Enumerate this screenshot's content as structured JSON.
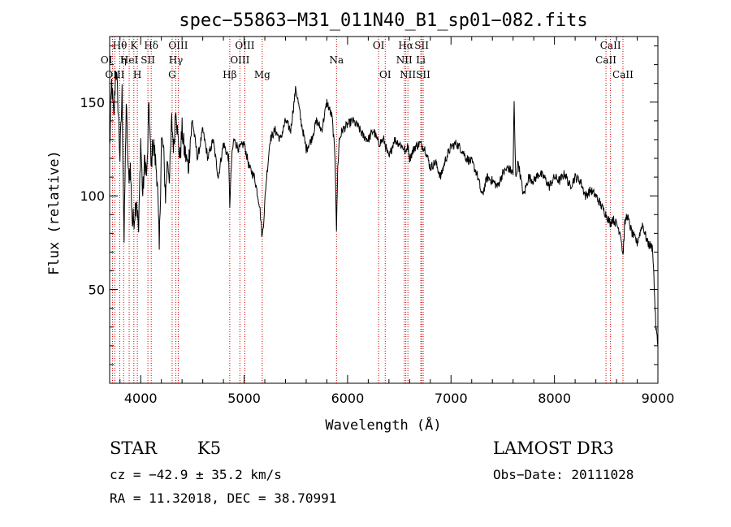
{
  "chart_data": {
    "type": "line",
    "title": "spec−55863−M31_011N40_B1_sp01−082.fits",
    "xlabel": "Wavelength (Å)",
    "ylabel": "Flux (relative)",
    "xlim": [
      3700,
      9000
    ],
    "ylim": [
      0,
      185
    ],
    "x_ticks": [
      4000,
      5000,
      6000,
      7000,
      8000,
      9000
    ],
    "y_ticks": [
      50,
      100,
      150
    ],
    "x_tick_labels": [
      "4000",
      "5000",
      "6000",
      "7000",
      "8000",
      "9000"
    ],
    "y_tick_labels": [
      "50",
      "100",
      "150"
    ],
    "series": [
      {
        "name": "flux",
        "x": [
          3700,
          3720,
          3740,
          3760,
          3780,
          3800,
          3820,
          3840,
          3860,
          3880,
          3900,
          3920,
          3940,
          3960,
          3980,
          4000,
          4020,
          4040,
          4060,
          4080,
          4100,
          4120,
          4140,
          4160,
          4180,
          4200,
          4220,
          4240,
          4260,
          4280,
          4300,
          4320,
          4340,
          4360,
          4380,
          4400,
          4420,
          4440,
          4460,
          4480,
          4500,
          4550,
          4600,
          4650,
          4700,
          4750,
          4800,
          4850,
          4861,
          4880,
          4900,
          4950,
          5000,
          5050,
          5100,
          5150,
          5175,
          5190,
          5210,
          5250,
          5300,
          5350,
          5400,
          5450,
          5500,
          5550,
          5600,
          5650,
          5700,
          5750,
          5800,
          5850,
          5880,
          5893,
          5905,
          5920,
          5950,
          6000,
          6050,
          6100,
          6150,
          6200,
          6250,
          6300,
          6350,
          6400,
          6450,
          6500,
          6550,
          6563,
          6580,
          6600,
          6650,
          6700,
          6750,
          6800,
          6850,
          6900,
          6950,
          7000,
          7050,
          7100,
          7150,
          7200,
          7250,
          7300,
          7350,
          7400,
          7450,
          7500,
          7550,
          7600,
          7610,
          7625,
          7650,
          7700,
          7750,
          7800,
          7850,
          7900,
          7950,
          8000,
          8050,
          8100,
          8150,
          8200,
          8250,
          8300,
          8350,
          8400,
          8450,
          8500,
          8542,
          8560,
          8600,
          8640,
          8662,
          8680,
          8700,
          8750,
          8800,
          8850,
          8900,
          8950,
          8980,
          9000
        ],
        "y": [
          125,
          160,
          140,
          170,
          150,
          120,
          155,
          75,
          150,
          110,
          115,
          85,
          90,
          100,
          80,
          130,
          100,
          120,
          110,
          150,
          115,
          130,
          120,
          110,
          70,
          130,
          125,
          100,
          120,
          110,
          140,
          125,
          150,
          130,
          120,
          135,
          125,
          120,
          115,
          130,
          140,
          120,
          135,
          120,
          130,
          110,
          128,
          120,
          95,
          120,
          130,
          125,
          128,
          115,
          110,
          95,
          78,
          88,
          105,
          130,
          135,
          130,
          140,
          135,
          158,
          140,
          125,
          130,
          140,
          135,
          150,
          142,
          120,
          82,
          115,
          130,
          135,
          138,
          140,
          137,
          132,
          130,
          135,
          128,
          130,
          120,
          130,
          128,
          125,
          122,
          128,
          120,
          126,
          128,
          125,
          115,
          118,
          110,
          120,
          126,
          128,
          125,
          120,
          118,
          112,
          100,
          110,
          108,
          105,
          112,
          115,
          112,
          150,
          110,
          118,
          100,
          110,
          108,
          112,
          110,
          105,
          110,
          108,
          112,
          105,
          110,
          108,
          100,
          103,
          100,
          95,
          90,
          85,
          88,
          85,
          80,
          68,
          85,
          90,
          80,
          75,
          85,
          75,
          72,
          30,
          20
        ]
      }
    ],
    "line_labels": [
      {
        "label": "Hθ",
        "wavelength": 3798,
        "row": 0,
        "anchor": "middle"
      },
      {
        "label": "K",
        "wavelength": 3934,
        "row": 0,
        "anchor": "middle"
      },
      {
        "label": "Hδ",
        "wavelength": 4102,
        "row": 0,
        "anchor": "middle"
      },
      {
        "label": "OIII",
        "wavelength": 4363,
        "row": 0,
        "anchor": "middle"
      },
      {
        "label": "OIII",
        "wavelength": 5007,
        "row": 0,
        "anchor": "middle"
      },
      {
        "label": "OI",
        "wavelength": 6300,
        "row": 0,
        "anchor": "middle"
      },
      {
        "label": "Hα",
        "wavelength": 6563,
        "row": 0,
        "anchor": "middle"
      },
      {
        "label": "SII",
        "wavelength": 6716,
        "row": 0,
        "anchor": "middle"
      },
      {
        "label": "CaII",
        "wavelength": 8542,
        "row": 0,
        "anchor": "middle"
      },
      {
        "label": "OI",
        "wavelength": 3727,
        "row": 1,
        "anchor": "end"
      },
      {
        "label": "η",
        "wavelength": 3835,
        "row": 1,
        "anchor": "middle"
      },
      {
        "label": "HeI",
        "wavelength": 3889,
        "row": 1,
        "anchor": "middle"
      },
      {
        "label": "SII",
        "wavelength": 4070,
        "row": 1,
        "anchor": "middle"
      },
      {
        "label": "Hγ",
        "wavelength": 4340,
        "row": 1,
        "anchor": "middle"
      },
      {
        "label": "OIII",
        "wavelength": 4959,
        "row": 1,
        "anchor": "middle"
      },
      {
        "label": "Na",
        "wavelength": 5893,
        "row": 1,
        "anchor": "middle"
      },
      {
        "label": "NII",
        "wavelength": 6548,
        "row": 1,
        "anchor": "middle"
      },
      {
        "label": "Li",
        "wavelength": 6708,
        "row": 1,
        "anchor": "middle"
      },
      {
        "label": "CaII",
        "wavelength": 8498,
        "row": 1,
        "anchor": "middle"
      },
      {
        "label": "OIII",
        "wavelength": 3750,
        "row": 2,
        "anchor": "middle"
      },
      {
        "label": "H",
        "wavelength": 3968,
        "row": 2,
        "anchor": "middle"
      },
      {
        "label": "G",
        "wavelength": 4304,
        "row": 2,
        "anchor": "middle"
      },
      {
        "label": "Hβ",
        "wavelength": 4861,
        "row": 2,
        "anchor": "middle"
      },
      {
        "label": "Mg",
        "wavelength": 5175,
        "row": 2,
        "anchor": "middle"
      },
      {
        "label": "OI",
        "wavelength": 6364,
        "row": 2,
        "anchor": "middle"
      },
      {
        "label": "NII",
        "wavelength": 6583,
        "row": 2,
        "anchor": "middle"
      },
      {
        "label": "SII",
        "wavelength": 6731,
        "row": 2,
        "anchor": "middle"
      },
      {
        "label": "CaII",
        "wavelength": 8662,
        "row": 2,
        "anchor": "middle"
      }
    ],
    "line_marker_color": "#cc0000",
    "spectrum_color": "#000000"
  },
  "info": {
    "class_label": "STAR",
    "subclass": "K5",
    "survey": "LAMOST DR3",
    "redshift_text": "cz = −42.9 ± 35.2 km/s",
    "obs_date": "Obs−Date: 20111028",
    "coords": "RA =  11.32018, DEC =  38.70991"
  }
}
